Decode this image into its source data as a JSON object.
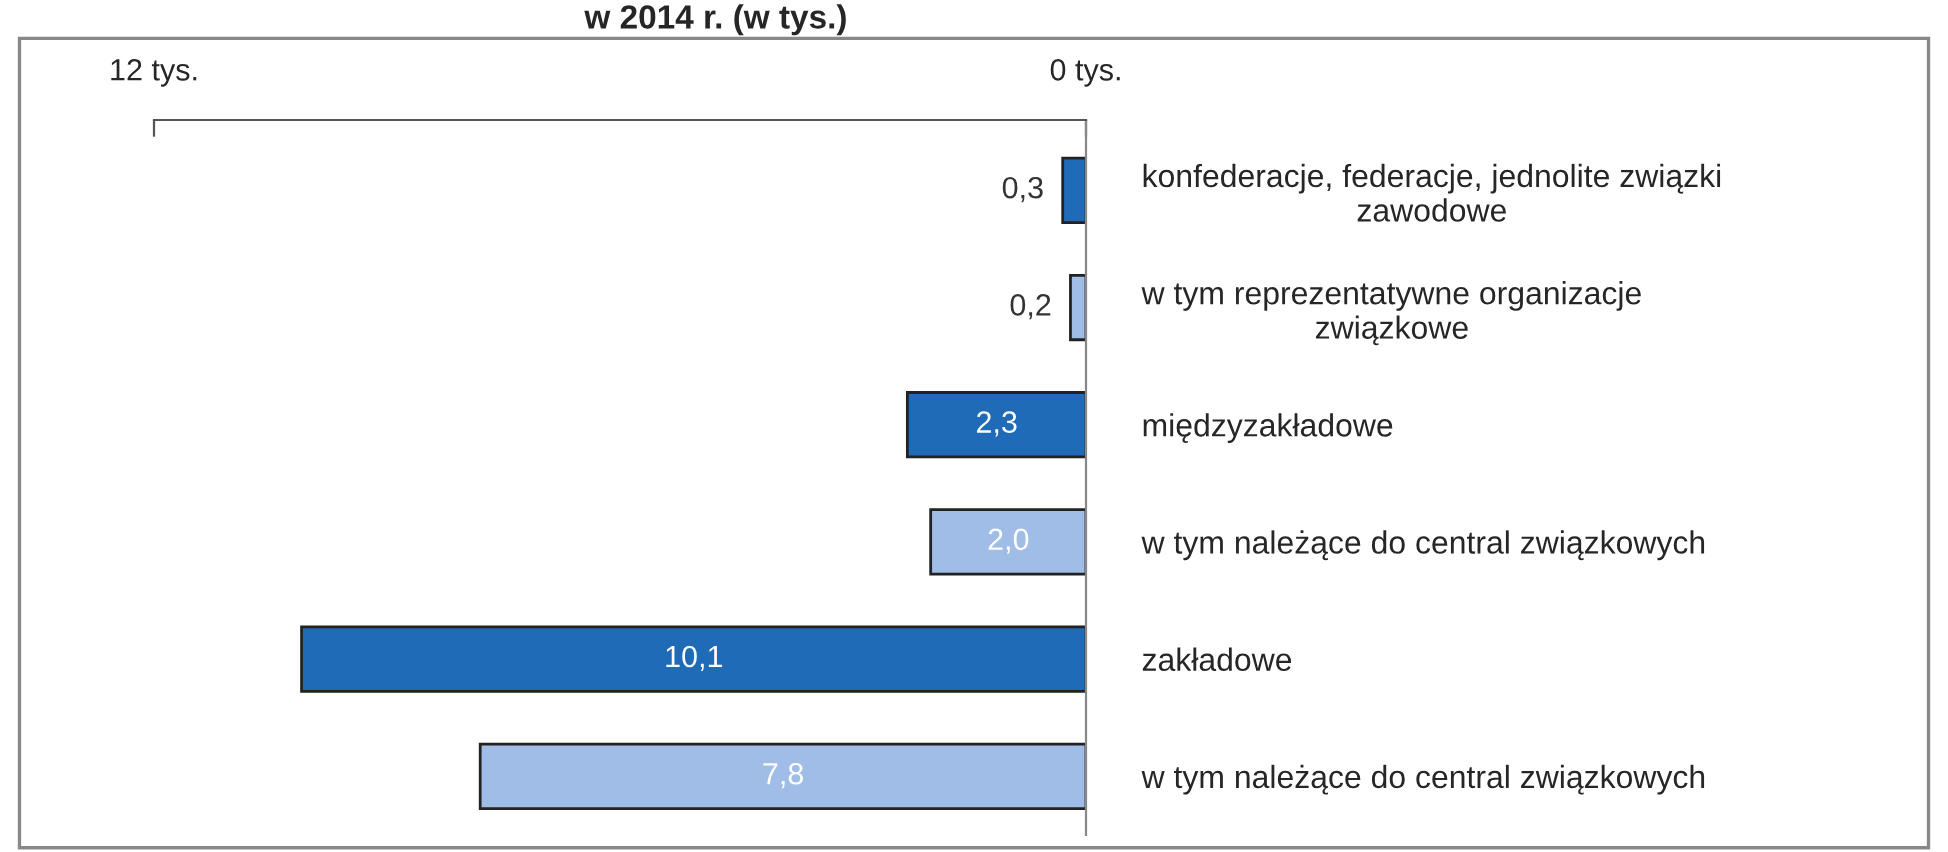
{
  "chart_data": {
    "type": "bar",
    "orientation": "horizontal",
    "title": "w 2014 r. (w tys.)",
    "categories": [
      "konfederacje, federacje, jednolite związki\nzawodowe",
      "w tym reprezentatywne organizacje\nzwiązkowe",
      "międzyzakładowe",
      "w tym należące do central związkowych",
      "zakładowe",
      "w tym należące do central związkowych"
    ],
    "values": [
      0.3,
      0.2,
      2.3,
      2.0,
      10.1,
      7.8
    ],
    "colors": [
      "#1f6bb8",
      "#9fbde6",
      "#1f6bb8",
      "#9fbde6",
      "#1f6bb8",
      "#9fbde6"
    ],
    "value_labels": [
      "0,3",
      "0,2",
      "2,3",
      "2,0",
      "10,1",
      "7,8"
    ],
    "xlim": [
      12,
      0
    ],
    "xticks": [
      {
        "value": 12,
        "label": "12 tys."
      },
      {
        "value": 0,
        "label": "0 tys."
      }
    ],
    "grid": false,
    "legend": false
  }
}
